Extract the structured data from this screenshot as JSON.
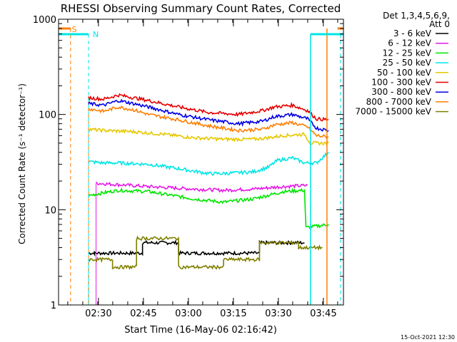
{
  "chart_data": {
    "type": "line",
    "title": "RHESSI Observing Summary Count Rates, Corrected",
    "xlabel": "Start Time (16-May-06 02:16:42)",
    "ylabel": "Corrected Count Rate (s⁻¹ detector⁻¹)",
    "yscale": "log",
    "ylim": [
      1,
      1000
    ],
    "xlim_minutes": [
      0,
      95
    ],
    "x_ticks": [
      {
        "label": "02:30",
        "minute": 13.3
      },
      {
        "label": "02:45",
        "minute": 28.3
      },
      {
        "label": "03:00",
        "minute": 43.3
      },
      {
        "label": "03:15",
        "minute": 58.3
      },
      {
        "label": "03:30",
        "minute": 73.3
      },
      {
        "label": "03:45",
        "minute": 88.3
      }
    ],
    "y_ticks": [
      {
        "label": "1",
        "value": 1
      },
      {
        "label": "10",
        "value": 10
      },
      {
        "label": "100",
        "value": 100
      },
      {
        "label": "1000",
        "value": 1000
      }
    ],
    "legend_header": [
      "Det 1,3,4,5,6,9,",
      "Att 0"
    ],
    "series": [
      {
        "name": "3 - 6 keV",
        "color": "#000000",
        "x": [
          10,
          12,
          12,
          28,
          28,
          40,
          40,
          67,
          67,
          82
        ],
        "values": [
          3.5,
          3.5,
          3.5,
          3.5,
          4.5,
          4.5,
          3.5,
          3.5,
          4.5,
          4.5
        ]
      },
      {
        "name": "6 - 12 keV",
        "color": "#e619e6",
        "x": [
          12.5,
          18,
          30,
          45,
          55,
          65,
          75,
          83
        ],
        "values": [
          19,
          18.5,
          17.5,
          16.5,
          16,
          16.5,
          17.5,
          18
        ]
      },
      {
        "name": "12 - 25 keV",
        "color": "#00e600",
        "x": [
          10,
          12,
          20,
          30,
          45,
          55,
          65,
          75,
          82,
          82.5,
          90
        ],
        "values": [
          14,
          14.5,
          16,
          15.5,
          13,
          12,
          13,
          15.5,
          16,
          6.5,
          7
        ]
      },
      {
        "name": "25 - 50 keV",
        "color": "#00e6e6",
        "x": [
          10,
          15,
          20,
          30,
          40,
          50,
          55,
          65,
          70,
          73,
          78,
          82,
          86,
          90
        ],
        "values": [
          32,
          31,
          31,
          30,
          27,
          24,
          24,
          25,
          28,
          33,
          35,
          31,
          31,
          40
        ]
      },
      {
        "name": "50 - 100 keV",
        "color": "#e6c800",
        "x": [
          10,
          15,
          25,
          35,
          45,
          55,
          65,
          70,
          75,
          82,
          84,
          90
        ],
        "values": [
          70,
          68,
          66,
          62,
          57,
          55,
          55,
          57,
          60,
          62,
          50,
          50
        ]
      },
      {
        "name": "100 - 300 keV",
        "color": "#e60000",
        "x": [
          10,
          15,
          20,
          25,
          30,
          40,
          50,
          60,
          68,
          72,
          78,
          83,
          86,
          90
        ],
        "values": [
          150,
          145,
          160,
          150,
          140,
          120,
          105,
          100,
          110,
          120,
          125,
          110,
          90,
          88
        ]
      },
      {
        "name": "300 - 800 keV",
        "color": "#0000e6",
        "x": [
          10,
          15,
          20,
          25,
          30,
          40,
          50,
          60,
          68,
          72,
          78,
          83,
          86,
          90
        ],
        "values": [
          130,
          125,
          140,
          130,
          120,
          100,
          88,
          80,
          85,
          95,
          100,
          90,
          72,
          68
        ]
      },
      {
        "name": "800 - 7000 keV",
        "color": "#ff7f00",
        "x": [
          10,
          15,
          20,
          25,
          30,
          40,
          50,
          60,
          68,
          72,
          78,
          83,
          86,
          90
        ],
        "values": [
          115,
          108,
          120,
          112,
          100,
          88,
          76,
          68,
          70,
          78,
          82,
          74,
          60,
          58
        ]
      },
      {
        "name": "7000 - 15000 keV",
        "color": "#808000",
        "x": [
          10,
          18,
          18,
          26,
          26,
          40,
          40,
          55,
          55,
          67,
          67,
          80,
          80,
          88
        ],
        "values": [
          3,
          3,
          2.5,
          2.5,
          5,
          5,
          2.5,
          2.5,
          3,
          3,
          4.5,
          4.5,
          4,
          4
        ]
      }
    ],
    "annotations": [
      {
        "label": "S",
        "color": "#ff7f00",
        "note": "SAA flag, dashed orange boundaries"
      },
      {
        "label": "N",
        "color": "#00e6e6",
        "note": "Night flag, dashed cyan boundaries"
      }
    ],
    "footer_timestamp": "15-Oct-2021 12:30"
  }
}
